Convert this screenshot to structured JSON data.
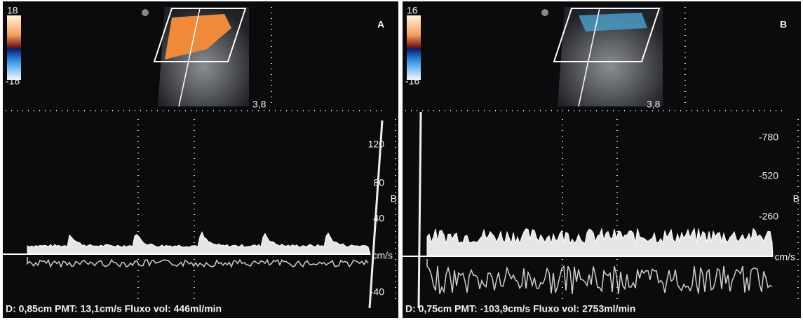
{
  "panels": [
    {
      "letter": "A",
      "scale_top": "18",
      "scale_bottom": "-18",
      "depth": "3,8",
      "velocity_labels": [
        "120",
        "80",
        "40",
        "-40"
      ],
      "unit": "cm/s",
      "side_mark": "B",
      "footer": "D: 0,85cm PMT: 13,1cm/s Fluxo vol:  446ml/min"
    },
    {
      "letter": "B",
      "scale_top": "16",
      "scale_bottom": "-16",
      "depth": "3,8",
      "velocity_labels": [
        "-780",
        "-520",
        "-260"
      ],
      "unit": "cm/s",
      "side_mark": "B",
      "footer": "D: 0,75cm PMT: -103,9cm/s Fluxo vol: 2753ml/min"
    }
  ]
}
